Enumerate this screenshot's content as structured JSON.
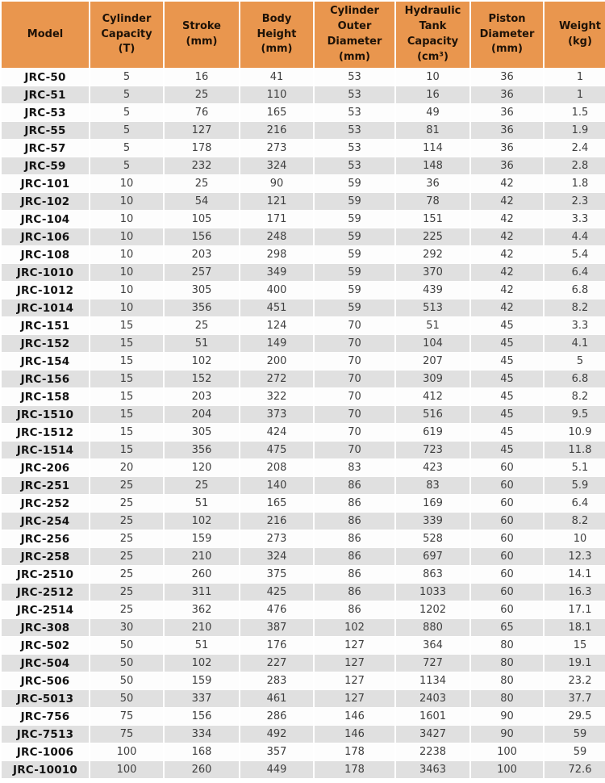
{
  "colors": {
    "header_bg": "#e9964e",
    "row_alt_bg": "#e0e0e0",
    "row_bg": "#fdfdfd",
    "header_text": "#1e1207",
    "body_text": "#3f3f3f",
    "model_text": "#141414",
    "page_bg": "#ffffff"
  },
  "chart_data": {
    "type": "table",
    "columns": [
      {
        "key": "model",
        "label": "Model"
      },
      {
        "key": "capacity",
        "label": "Cylinder\nCapacity\n(T)"
      },
      {
        "key": "stroke",
        "label": "Stroke\n(mm)"
      },
      {
        "key": "body_height",
        "label": "Body\nHeight\n(mm)"
      },
      {
        "key": "outer_diameter",
        "label": "Cylinder\nOuter\nDiameter\n(mm)"
      },
      {
        "key": "tank_capacity",
        "label": "Hydraulic\nTank\nCapacity\n(cm³)"
      },
      {
        "key": "piston_diameter",
        "label": "Piston\nDiameter\n(mm)"
      },
      {
        "key": "weight",
        "label": "Weight\n(kg)"
      }
    ],
    "rows": [
      {
        "model": "JRC-50",
        "capacity": 5,
        "stroke": 16,
        "body_height": 41,
        "outer_diameter": 53,
        "tank_capacity": 10,
        "piston_diameter": 36,
        "weight": 1
      },
      {
        "model": "JRC-51",
        "capacity": 5,
        "stroke": 25,
        "body_height": 110,
        "outer_diameter": 53,
        "tank_capacity": 16,
        "piston_diameter": 36,
        "weight": 1
      },
      {
        "model": "JRC-53",
        "capacity": 5,
        "stroke": 76,
        "body_height": 165,
        "outer_diameter": 53,
        "tank_capacity": 49,
        "piston_diameter": 36,
        "weight": 1.5
      },
      {
        "model": "JRC-55",
        "capacity": 5,
        "stroke": 127,
        "body_height": 216,
        "outer_diameter": 53,
        "tank_capacity": 81,
        "piston_diameter": 36,
        "weight": 1.9
      },
      {
        "model": "JRC-57",
        "capacity": 5,
        "stroke": 178,
        "body_height": 273,
        "outer_diameter": 53,
        "tank_capacity": 114,
        "piston_diameter": 36,
        "weight": 2.4
      },
      {
        "model": "JRC-59",
        "capacity": 5,
        "stroke": 232,
        "body_height": 324,
        "outer_diameter": 53,
        "tank_capacity": 148,
        "piston_diameter": 36,
        "weight": 2.8
      },
      {
        "model": "JRC-101",
        "capacity": 10,
        "stroke": 25,
        "body_height": 90,
        "outer_diameter": 59,
        "tank_capacity": 36,
        "piston_diameter": 42,
        "weight": 1.8
      },
      {
        "model": "JRC-102",
        "capacity": 10,
        "stroke": 54,
        "body_height": 121,
        "outer_diameter": 59,
        "tank_capacity": 78,
        "piston_diameter": 42,
        "weight": 2.3
      },
      {
        "model": "JRC-104",
        "capacity": 10,
        "stroke": 105,
        "body_height": 171,
        "outer_diameter": 59,
        "tank_capacity": 151,
        "piston_diameter": 42,
        "weight": 3.3
      },
      {
        "model": "JRC-106",
        "capacity": 10,
        "stroke": 156,
        "body_height": 248,
        "outer_diameter": 59,
        "tank_capacity": 225,
        "piston_diameter": 42,
        "weight": 4.4
      },
      {
        "model": "JRC-108",
        "capacity": 10,
        "stroke": 203,
        "body_height": 298,
        "outer_diameter": 59,
        "tank_capacity": 292,
        "piston_diameter": 42,
        "weight": 5.4
      },
      {
        "model": "JRC-1010",
        "capacity": 10,
        "stroke": 257,
        "body_height": 349,
        "outer_diameter": 59,
        "tank_capacity": 370,
        "piston_diameter": 42,
        "weight": 6.4
      },
      {
        "model": "JRC-1012",
        "capacity": 10,
        "stroke": 305,
        "body_height": 400,
        "outer_diameter": 59,
        "tank_capacity": 439,
        "piston_diameter": 42,
        "weight": 6.8
      },
      {
        "model": "JRC-1014",
        "capacity": 10,
        "stroke": 356,
        "body_height": 451,
        "outer_diameter": 59,
        "tank_capacity": 513,
        "piston_diameter": 42,
        "weight": 8.2
      },
      {
        "model": "JRC-151",
        "capacity": 15,
        "stroke": 25,
        "body_height": 124,
        "outer_diameter": 70,
        "tank_capacity": 51,
        "piston_diameter": 45,
        "weight": 3.3
      },
      {
        "model": "JRC-152",
        "capacity": 15,
        "stroke": 51,
        "body_height": 149,
        "outer_diameter": 70,
        "tank_capacity": 104,
        "piston_diameter": 45,
        "weight": 4.1
      },
      {
        "model": "JRC-154",
        "capacity": 15,
        "stroke": 102,
        "body_height": 200,
        "outer_diameter": 70,
        "tank_capacity": 207,
        "piston_diameter": 45,
        "weight": 5
      },
      {
        "model": "JRC-156",
        "capacity": 15,
        "stroke": 152,
        "body_height": 272,
        "outer_diameter": 70,
        "tank_capacity": 309,
        "piston_diameter": 45,
        "weight": 6.8
      },
      {
        "model": "JRC-158",
        "capacity": 15,
        "stroke": 203,
        "body_height": 322,
        "outer_diameter": 70,
        "tank_capacity": 412,
        "piston_diameter": 45,
        "weight": 8.2
      },
      {
        "model": "JRC-1510",
        "capacity": 15,
        "stroke": 204,
        "body_height": 373,
        "outer_diameter": 70,
        "tank_capacity": 516,
        "piston_diameter": 45,
        "weight": 9.5
      },
      {
        "model": "JRC-1512",
        "capacity": 15,
        "stroke": 305,
        "body_height": 424,
        "outer_diameter": 70,
        "tank_capacity": 619,
        "piston_diameter": 45,
        "weight": 10.9
      },
      {
        "model": "JRC-1514",
        "capacity": 15,
        "stroke": 356,
        "body_height": 475,
        "outer_diameter": 70,
        "tank_capacity": 723,
        "piston_diameter": 45,
        "weight": 11.8
      },
      {
        "model": "JRC-206",
        "capacity": 20,
        "stroke": 120,
        "body_height": 208,
        "outer_diameter": 83,
        "tank_capacity": 423,
        "piston_diameter": 60,
        "weight": 5.1
      },
      {
        "model": "JRC-251",
        "capacity": 25,
        "stroke": 25,
        "body_height": 140,
        "outer_diameter": 86,
        "tank_capacity": 83,
        "piston_diameter": 60,
        "weight": 5.9
      },
      {
        "model": "JRC-252",
        "capacity": 25,
        "stroke": 51,
        "body_height": 165,
        "outer_diameter": 86,
        "tank_capacity": 169,
        "piston_diameter": 60,
        "weight": 6.4
      },
      {
        "model": "JRC-254",
        "capacity": 25,
        "stroke": 102,
        "body_height": 216,
        "outer_diameter": 86,
        "tank_capacity": 339,
        "piston_diameter": 60,
        "weight": 8.2
      },
      {
        "model": "JRC-256",
        "capacity": 25,
        "stroke": 159,
        "body_height": 273,
        "outer_diameter": 86,
        "tank_capacity": 528,
        "piston_diameter": 60,
        "weight": 10
      },
      {
        "model": "JRC-258",
        "capacity": 25,
        "stroke": 210,
        "body_height": 324,
        "outer_diameter": 86,
        "tank_capacity": 697,
        "piston_diameter": 60,
        "weight": 12.3
      },
      {
        "model": "JRC-2510",
        "capacity": 25,
        "stroke": 260,
        "body_height": 375,
        "outer_diameter": 86,
        "tank_capacity": 863,
        "piston_diameter": 60,
        "weight": 14.1
      },
      {
        "model": "JRC-2512",
        "capacity": 25,
        "stroke": 311,
        "body_height": 425,
        "outer_diameter": 86,
        "tank_capacity": 1033,
        "piston_diameter": 60,
        "weight": 16.3
      },
      {
        "model": "JRC-2514",
        "capacity": 25,
        "stroke": 362,
        "body_height": 476,
        "outer_diameter": 86,
        "tank_capacity": 1202,
        "piston_diameter": 60,
        "weight": 17.1
      },
      {
        "model": "JRC-308",
        "capacity": 30,
        "stroke": 210,
        "body_height": 387,
        "outer_diameter": 102,
        "tank_capacity": 880,
        "piston_diameter": 65,
        "weight": 18.1
      },
      {
        "model": "JRC-502",
        "capacity": 50,
        "stroke": 51,
        "body_height": 176,
        "outer_diameter": 127,
        "tank_capacity": 364,
        "piston_diameter": 80,
        "weight": 15
      },
      {
        "model": "JRC-504",
        "capacity": 50,
        "stroke": 102,
        "body_height": 227,
        "outer_diameter": 127,
        "tank_capacity": 727,
        "piston_diameter": 80,
        "weight": 19.1
      },
      {
        "model": "JRC-506",
        "capacity": 50,
        "stroke": 159,
        "body_height": 283,
        "outer_diameter": 127,
        "tank_capacity": 1134,
        "piston_diameter": 80,
        "weight": 23.2
      },
      {
        "model": "JRC-5013",
        "capacity": 50,
        "stroke": 337,
        "body_height": 461,
        "outer_diameter": 127,
        "tank_capacity": 2403,
        "piston_diameter": 80,
        "weight": 37.7
      },
      {
        "model": "JRC-756",
        "capacity": 75,
        "stroke": 156,
        "body_height": 286,
        "outer_diameter": 146,
        "tank_capacity": 1601,
        "piston_diameter": 90,
        "weight": 29.5
      },
      {
        "model": "JRC-7513",
        "capacity": 75,
        "stroke": 334,
        "body_height": 492,
        "outer_diameter": 146,
        "tank_capacity": 3427,
        "piston_diameter": 90,
        "weight": 59
      },
      {
        "model": "JRC-1006",
        "capacity": 100,
        "stroke": 168,
        "body_height": 357,
        "outer_diameter": 178,
        "tank_capacity": 2238,
        "piston_diameter": 100,
        "weight": 59
      },
      {
        "model": "JRC-10010",
        "capacity": 100,
        "stroke": 260,
        "body_height": 449,
        "outer_diameter": 178,
        "tank_capacity": 3463,
        "piston_diameter": 100,
        "weight": 72.6
      }
    ]
  }
}
